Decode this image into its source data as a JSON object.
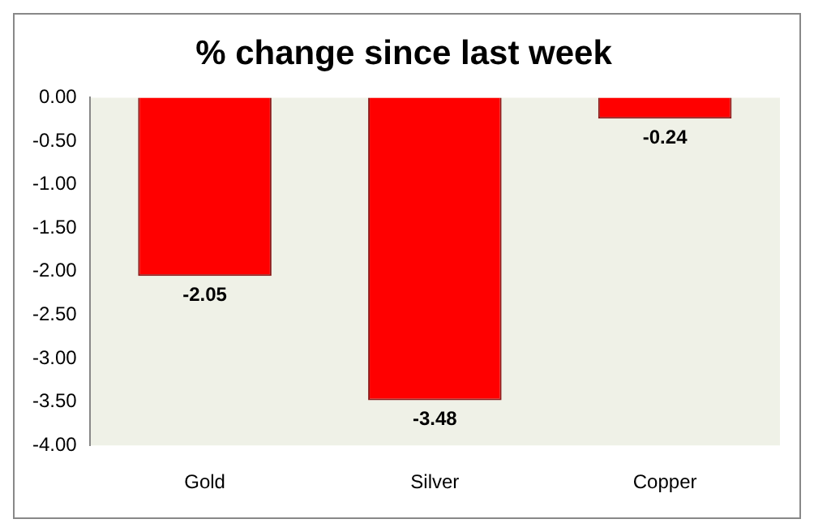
{
  "chart_data": {
    "type": "bar",
    "title": "% change since last week",
    "categories": [
      "Gold",
      "Silver",
      "Copper"
    ],
    "values": [
      -2.05,
      -3.48,
      -0.24
    ],
    "color": "#ff0000",
    "ylim": [
      -4,
      0
    ],
    "yticks": [
      {
        "value": 0,
        "label": "0.00"
      },
      {
        "value": -0.5,
        "label": "-0.50"
      },
      {
        "value": -1,
        "label": "-1.00"
      },
      {
        "value": -1.5,
        "label": "-1.50"
      },
      {
        "value": -2,
        "label": "-2.00"
      },
      {
        "value": -2.5,
        "label": "-2.50"
      },
      {
        "value": -3,
        "label": "-3.00"
      },
      {
        "value": -3.5,
        "label": "-3.50"
      },
      {
        "value": -4,
        "label": "-4.00"
      }
    ],
    "data_labels": true,
    "grid": false,
    "legend": false
  }
}
